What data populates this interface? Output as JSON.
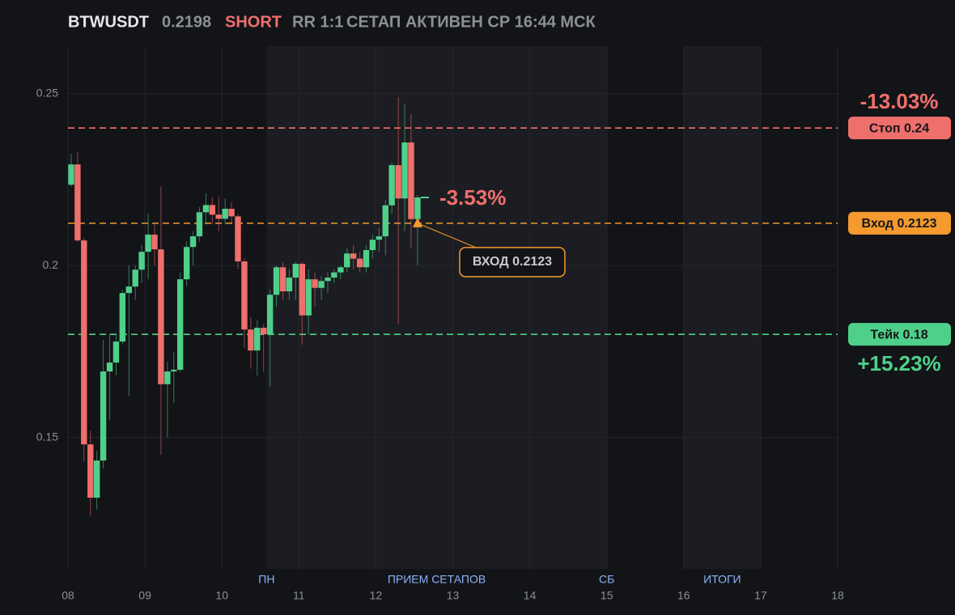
{
  "header": {
    "symbol": "BTWUSDT",
    "price": "0.2198",
    "side": "SHORT",
    "rr": "RR 1:1",
    "status": "СЕТАП АКТИВЕН СР 16:44 МСК"
  },
  "chart_data": {
    "type": "candlestick",
    "x": [
      8.042,
      8.125,
      8.208,
      8.292,
      8.375,
      8.458,
      8.542,
      8.625,
      8.708,
      8.792,
      8.875,
      8.958,
      9.042,
      9.125,
      9.208,
      9.292,
      9.375,
      9.458,
      9.542,
      9.625,
      9.708,
      9.792,
      9.875,
      9.958,
      10.042,
      10.125,
      10.208,
      10.292,
      10.375,
      10.458,
      10.542,
      10.625,
      10.708,
      10.792,
      10.875,
      10.958,
      11.042,
      11.125,
      11.208,
      11.292,
      11.375,
      11.458,
      11.542,
      11.625,
      11.708,
      11.792,
      11.875,
      11.958,
      12.042,
      12.125,
      12.208,
      12.292,
      12.375,
      12.458,
      12.542
    ],
    "open": [
      0.2235,
      0.2294,
      0.2073,
      0.148,
      0.1325,
      0.1433,
      0.1692,
      0.1718,
      0.1779,
      0.192,
      0.1939,
      0.1988,
      0.204,
      0.209,
      0.2047,
      0.1655,
      0.1692,
      0.1697,
      0.196,
      0.2054,
      0.2085,
      0.2155,
      0.2176,
      0.2148,
      0.2136,
      0.2165,
      0.2143,
      0.2012,
      0.1814,
      0.1753,
      0.1819,
      0.18,
      0.1915,
      0.1995,
      0.1925,
      0.1965,
      0.2005,
      0.1855,
      0.196,
      0.1935,
      0.1955,
      0.1965,
      0.198,
      0.1995,
      0.2035,
      0.202,
      0.1995,
      0.2045,
      0.2075,
      0.2085,
      0.2175,
      0.2292,
      0.2195,
      0.2358,
      0.2135
    ],
    "high": [
      0.2325,
      0.233,
      0.208,
      0.152,
      0.146,
      0.1784,
      0.18,
      0.18,
      0.193,
      0.2,
      0.2,
      0.206,
      0.215,
      0.212,
      0.223,
      0.172,
      0.175,
      0.198,
      0.207,
      0.21,
      0.217,
      0.221,
      0.22,
      0.22,
      0.2195,
      0.2185,
      0.215,
      0.202,
      0.185,
      0.184,
      0.183,
      0.193,
      0.2,
      0.201,
      0.199,
      0.201,
      0.201,
      0.199,
      0.198,
      0.197,
      0.198,
      0.199,
      0.2,
      0.205,
      0.206,
      0.204,
      0.206,
      0.209,
      0.211,
      0.219,
      0.23,
      0.249,
      0.247,
      0.244,
      0.2205
    ],
    "low": [
      0.223,
      0.207,
      0.143,
      0.127,
      0.129,
      0.141,
      0.155,
      0.168,
      0.177,
      0.162,
      0.19,
      0.195,
      0.196,
      0.2,
      0.145,
      0.15,
      0.16,
      0.169,
      0.194,
      0.2,
      0.207,
      0.212,
      0.212,
      0.21,
      0.212,
      0.212,
      0.199,
      0.176,
      0.17,
      0.168,
      0.169,
      0.165,
      0.188,
      0.19,
      0.19,
      0.19,
      0.177,
      0.18,
      0.188,
      0.19,
      0.192,
      0.195,
      0.196,
      0.198,
      0.199,
      0.198,
      0.198,
      0.202,
      0.204,
      0.203,
      0.215,
      0.183,
      0.21,
      0.205,
      0.2
    ],
    "close": [
      0.2294,
      0.2073,
      0.148,
      0.1325,
      0.1433,
      0.1692,
      0.1718,
      0.1779,
      0.192,
      0.1939,
      0.1988,
      0.204,
      0.209,
      0.2047,
      0.1655,
      0.1692,
      0.1697,
      0.196,
      0.2054,
      0.2085,
      0.2155,
      0.2176,
      0.2148,
      0.2136,
      0.2165,
      0.2143,
      0.2012,
      0.1814,
      0.1753,
      0.1819,
      0.18,
      0.1915,
      0.1995,
      0.1925,
      0.1965,
      0.2005,
      0.1855,
      0.196,
      0.1935,
      0.1955,
      0.1965,
      0.198,
      0.1995,
      0.2035,
      0.202,
      0.1995,
      0.2045,
      0.2075,
      0.2085,
      0.2175,
      0.2292,
      0.2195,
      0.2358,
      0.2135,
      0.2198
    ],
    "up_color": "#4fd08a",
    "down_color": "#ef6f6c",
    "xlim": [
      8,
      18
    ],
    "xticks": [
      {
        "value": 8,
        "label": "08"
      },
      {
        "value": 9,
        "label": "09"
      },
      10,
      11,
      12,
      13,
      14,
      15,
      16,
      17,
      18
    ],
    "ylim": [
      0.1118,
      0.2638
    ],
    "yticks": [
      0.15,
      0.2,
      0.25
    ],
    "grid": true,
    "bands": [
      [
        10.58,
        15
      ],
      [
        16,
        17
      ]
    ],
    "markers": [
      {
        "x": 10.58,
        "label": "ПН"
      },
      {
        "x": 12.79,
        "label": "ПРИЕМ СЕТАПОВ"
      },
      {
        "x": 15,
        "label": "СБ"
      },
      {
        "x": 16.5,
        "label": "ИТОГИ"
      }
    ],
    "levels": [
      {
        "value": 0.24,
        "label": "Стоп 0.24",
        "color": "#ef6f6c",
        "change": "-13.03%"
      },
      {
        "value": 0.2123,
        "label": "Вход 0.2123",
        "color": "#f59a2e"
      },
      {
        "value": 0.18,
        "label": "Тейк 0.18",
        "color": "#4fd08a",
        "change": "+15.23%"
      }
    ],
    "entry": {
      "x": 12.542,
      "value": 0.2123,
      "label": "ВХОД 0.2123",
      "color": "#f59a2e"
    },
    "current_change": "-3.53%"
  }
}
